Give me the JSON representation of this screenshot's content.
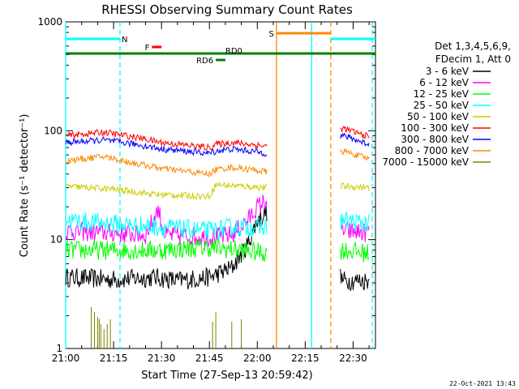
{
  "chart_data": {
    "type": "line",
    "title": "RHESSI Observing Summary Count Rates",
    "xlabel": "Start Time (27-Sep-13 20:59:42)",
    "ylabel": "Count Rate (s⁻¹ detector⁻¹)",
    "ylog": true,
    "ylim": [
      1,
      1000
    ],
    "xlim_minutes": [
      0,
      97
    ],
    "x_ticks": [
      {
        "label": "21:00",
        "min": 0
      },
      {
        "label": "21:15",
        "min": 15
      },
      {
        "label": "21:30",
        "min": 30
      },
      {
        "label": "21:45",
        "min": 45
      },
      {
        "label": "22:00",
        "min": 60
      },
      {
        "label": "22:15",
        "min": 75
      },
      {
        "label": "22:30",
        "min": 90
      }
    ],
    "y_ticks": [
      {
        "label": "1",
        "v": 1
      },
      {
        "label": "10",
        "v": 10
      },
      {
        "label": "100",
        "v": 100
      },
      {
        "label": "1000",
        "v": 1000
      }
    ],
    "legend_header": [
      "Det 1,3,4,5,6,9,",
      "FDecim 1, Att 0"
    ],
    "series": [
      {
        "name": "3 - 6 keV",
        "color": "#000000",
        "points": [
          [
            0,
            4.5
          ],
          [
            15,
            4.3
          ],
          [
            28,
            4.5
          ],
          [
            35,
            4.2
          ],
          [
            45,
            4.5
          ],
          [
            52,
            5.5
          ],
          [
            57,
            9
          ],
          [
            60,
            15
          ],
          [
            63,
            18
          ],
          [
            87,
            4.2
          ],
          [
            95,
            4.2
          ]
        ]
      },
      {
        "name": "6 - 12 keV",
        "color": "#ff00ff",
        "points": [
          [
            0,
            12
          ],
          [
            15,
            11.5
          ],
          [
            25,
            11
          ],
          [
            29,
            19
          ],
          [
            31,
            11
          ],
          [
            45,
            10.5
          ],
          [
            52,
            11
          ],
          [
            57,
            15
          ],
          [
            60,
            20
          ],
          [
            63,
            23
          ],
          [
            87,
            12
          ],
          [
            95,
            11.5
          ]
        ]
      },
      {
        "name": "12 - 25 keV",
        "color": "#00ff00",
        "points": [
          [
            0,
            8
          ],
          [
            15,
            8
          ],
          [
            30,
            8
          ],
          [
            45,
            8.5
          ],
          [
            55,
            8
          ],
          [
            63,
            7.5
          ],
          [
            87,
            8
          ],
          [
            95,
            7.5
          ]
        ]
      },
      {
        "name": "25 - 50 keV",
        "color": "#00ffff",
        "points": [
          [
            0,
            15
          ],
          [
            15,
            14
          ],
          [
            30,
            13
          ],
          [
            45,
            12
          ],
          [
            52,
            13
          ],
          [
            63,
            13
          ],
          [
            87,
            15
          ],
          [
            95,
            14
          ]
        ]
      },
      {
        "name": "50 - 100 keV",
        "color": "#cccc00",
        "points": [
          [
            0,
            31
          ],
          [
            15,
            29
          ],
          [
            28,
            26
          ],
          [
            45,
            25
          ],
          [
            47,
            32
          ],
          [
            55,
            31
          ],
          [
            63,
            30
          ],
          [
            87,
            31
          ],
          [
            95,
            30
          ]
        ]
      },
      {
        "name": "100 - 300 keV",
        "color": "#ff0000",
        "points": [
          [
            0,
            90
          ],
          [
            12,
            97
          ],
          [
            22,
            87
          ],
          [
            30,
            78
          ],
          [
            45,
            70
          ],
          [
            47,
            75
          ],
          [
            52,
            78
          ],
          [
            58,
            75
          ],
          [
            63,
            72
          ],
          [
            87,
            105
          ],
          [
            95,
            88
          ]
        ]
      },
      {
        "name": "300 - 800 keV",
        "color": "#0000ff",
        "points": [
          [
            0,
            78
          ],
          [
            12,
            82
          ],
          [
            22,
            75
          ],
          [
            30,
            68
          ],
          [
            45,
            62
          ],
          [
            47,
            65
          ],
          [
            52,
            68
          ],
          [
            58,
            65
          ],
          [
            63,
            62
          ],
          [
            87,
            90
          ],
          [
            95,
            75
          ]
        ]
      },
      {
        "name": "800 - 7000 keV",
        "color": "#ff8800",
        "points": [
          [
            0,
            53
          ],
          [
            12,
            58
          ],
          [
            22,
            50
          ],
          [
            30,
            45
          ],
          [
            45,
            40
          ],
          [
            47,
            44
          ],
          [
            52,
            46
          ],
          [
            58,
            44
          ],
          [
            63,
            42
          ],
          [
            87,
            65
          ],
          [
            95,
            55
          ]
        ]
      },
      {
        "name": "7000 - 15000 keV",
        "color": "#808000",
        "points": []
      }
    ],
    "flags": [
      {
        "name": "N",
        "color": "#00ffff",
        "segments": [
          [
            0,
            17
          ],
          [
            83,
            97
          ]
        ]
      },
      {
        "name": "F",
        "color": "#ff0000",
        "segments": [
          [
            27,
            30
          ]
        ]
      },
      {
        "name": "S",
        "color": "#ff8800",
        "segments": [
          [
            66,
            83
          ]
        ]
      },
      {
        "name": "RD0",
        "color": "#008000",
        "segments": [
          [
            0,
            97
          ]
        ]
      },
      {
        "name": "RD6",
        "color": "#008000",
        "segments": [
          [
            47,
            50
          ]
        ]
      }
    ],
    "vlines": [
      {
        "min": 0,
        "color": "#00ffff",
        "style": "solid"
      },
      {
        "min": 17,
        "color": "#00ffff",
        "style": "dashed"
      },
      {
        "min": 66,
        "color": "#ff8800",
        "style": "solid"
      },
      {
        "min": 77,
        "color": "#00ffff",
        "style": "solid"
      },
      {
        "min": 83,
        "color": "#ff8800",
        "style": "dashed"
      },
      {
        "min": 96,
        "color": "#00ffff",
        "style": "dashed"
      }
    ],
    "gaps": [
      [
        63,
        86
      ]
    ]
  },
  "timestamp": "22-Oct-2021 13:43"
}
